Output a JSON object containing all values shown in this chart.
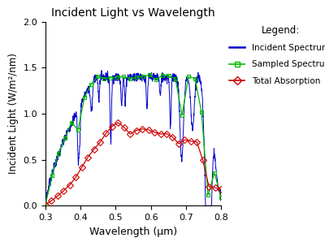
{
  "title": "Incident Light vs Wavelength",
  "xlabel": "Wavelength (μm)",
  "ylabel": "Incident Light (W/m²/nm)",
  "xlim": [
    0.3,
    0.8
  ],
  "ylim": [
    0,
    2
  ],
  "yticks": [
    0,
    0.5,
    1.0,
    1.5,
    2.0
  ],
  "xticks": [
    0.3,
    0.4,
    0.5,
    0.6,
    0.7,
    0.8
  ],
  "legend_title": "Legend:",
  "incident_color": "#0000cc",
  "sampled_color": "#00bb00",
  "absorption_color": "#cc0000",
  "background_color": "#ffffff",
  "fig_background": "#ffffff"
}
